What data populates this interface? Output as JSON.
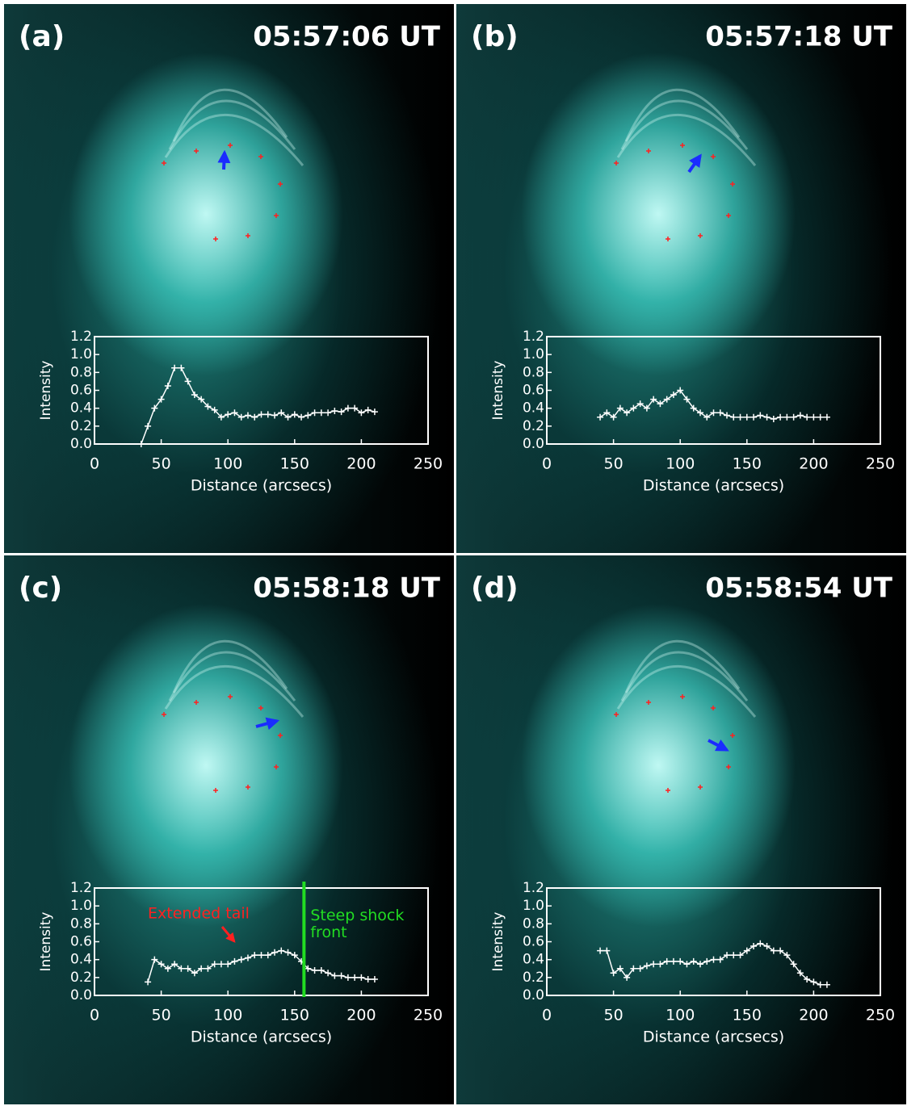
{
  "chart_data": [
    {
      "type": "line",
      "panel": "(a)",
      "time": "05:57:06 UT",
      "xlabel": "Distance (arcsecs)",
      "ylabel": "Intensity",
      "xlim": [
        0,
        250
      ],
      "xticks": [
        0,
        50,
        100,
        150,
        200,
        250
      ],
      "ylim": [
        0,
        1.2
      ],
      "yticks": [
        {
          "value": 0,
          "label": "0.0"
        },
        0.2,
        0.4,
        0.6,
        0.8,
        {
          "value": 1,
          "label": "1.0"
        },
        1.2
      ],
      "color": "#ffffff",
      "x": [
        35,
        40,
        45,
        50,
        55,
        60,
        65,
        70,
        75,
        80,
        85,
        90,
        95,
        100,
        105,
        110,
        115,
        120,
        125,
        130,
        135,
        140,
        145,
        150,
        155,
        160,
        165,
        170,
        175,
        180,
        185,
        190,
        195,
        200,
        205,
        210
      ],
      "values": [
        0.0,
        0.2,
        0.4,
        0.5,
        0.65,
        0.85,
        0.85,
        0.7,
        0.55,
        0.5,
        0.42,
        0.38,
        0.3,
        0.33,
        0.35,
        0.3,
        0.32,
        0.3,
        0.33,
        0.33,
        0.32,
        0.35,
        0.3,
        0.33,
        0.3,
        0.32,
        0.35,
        0.35,
        0.35,
        0.37,
        0.36,
        0.4,
        0.4,
        0.35,
        0.38,
        0.36
      ]
    },
    {
      "type": "line",
      "panel": "(b)",
      "time": "05:57:18 UT",
      "xlabel": "Distance (arcsecs)",
      "ylabel": "Intensity",
      "xlim": [
        0,
        250
      ],
      "xticks": [
        0,
        50,
        100,
        150,
        200,
        250
      ],
      "ylim": [
        0,
        1.2
      ],
      "yticks": [
        {
          "value": 0,
          "label": "0.0"
        },
        0.2,
        0.4,
        0.6,
        0.8,
        {
          "value": 1,
          "label": "1.0"
        },
        1.2
      ],
      "color": "#ffffff",
      "x": [
        40,
        45,
        50,
        55,
        60,
        65,
        70,
        75,
        80,
        85,
        90,
        95,
        100,
        105,
        110,
        115,
        120,
        125,
        130,
        135,
        140,
        145,
        150,
        155,
        160,
        165,
        170,
        175,
        180,
        185,
        190,
        195,
        200,
        205,
        210
      ],
      "values": [
        0.3,
        0.35,
        0.3,
        0.4,
        0.35,
        0.4,
        0.45,
        0.4,
        0.5,
        0.45,
        0.5,
        0.55,
        0.6,
        0.5,
        0.4,
        0.35,
        0.3,
        0.35,
        0.35,
        0.32,
        0.3,
        0.3,
        0.3,
        0.3,
        0.32,
        0.3,
        0.28,
        0.3,
        0.3,
        0.3,
        0.32,
        0.3,
        0.3,
        0.3,
        0.3
      ]
    },
    {
      "type": "line",
      "panel": "(c)",
      "time": "05:58:18 UT",
      "xlabel": "Distance (arcsecs)",
      "ylabel": "Intensity",
      "xlim": [
        0,
        250
      ],
      "xticks": [
        0,
        50,
        100,
        150,
        200,
        250
      ],
      "ylim": [
        0,
        1.2
      ],
      "yticks": [
        {
          "value": 0,
          "label": "0.0"
        },
        0.2,
        0.4,
        0.6,
        0.8,
        {
          "value": 1,
          "label": "1.0"
        },
        1.2
      ],
      "color": "#ffffff",
      "x": [
        40,
        45,
        50,
        55,
        60,
        65,
        70,
        75,
        80,
        85,
        90,
        95,
        100,
        105,
        110,
        115,
        120,
        125,
        130,
        135,
        140,
        145,
        150,
        155,
        160,
        165,
        170,
        175,
        180,
        185,
        190,
        195,
        200,
        205,
        210
      ],
      "values": [
        0.15,
        0.4,
        0.35,
        0.3,
        0.35,
        0.3,
        0.3,
        0.25,
        0.3,
        0.3,
        0.35,
        0.35,
        0.35,
        0.38,
        0.4,
        0.42,
        0.45,
        0.45,
        0.45,
        0.48,
        0.5,
        0.48,
        0.45,
        0.38,
        0.3,
        0.28,
        0.28,
        0.25,
        0.22,
        0.22,
        0.2,
        0.2,
        0.2,
        0.18,
        0.18
      ],
      "annotation_tail": "Extended tail",
      "annotation_front": "Steep shock front",
      "front_x": 157,
      "front_color": "#22dd22"
    },
    {
      "type": "line",
      "panel": "(d)",
      "time": "05:58:54 UT",
      "xlabel": "Distance (arcsecs)",
      "ylabel": "Intensity",
      "xlim": [
        0,
        250
      ],
      "xticks": [
        0,
        50,
        100,
        150,
        200,
        250
      ],
      "ylim": [
        0,
        1.2
      ],
      "yticks": [
        {
          "value": 0,
          "label": "0.0"
        },
        0.2,
        0.4,
        0.6,
        0.8,
        {
          "value": 1,
          "label": "1.0"
        },
        1.2
      ],
      "color": "#ffffff",
      "x": [
        40,
        45,
        50,
        55,
        60,
        65,
        70,
        75,
        80,
        85,
        90,
        95,
        100,
        105,
        110,
        115,
        120,
        125,
        130,
        135,
        140,
        145,
        150,
        155,
        160,
        165,
        170,
        175,
        180,
        185,
        190,
        195,
        200,
        205,
        210
      ],
      "values": [
        0.5,
        0.5,
        0.25,
        0.3,
        0.2,
        0.3,
        0.3,
        0.33,
        0.35,
        0.35,
        0.38,
        0.38,
        0.38,
        0.35,
        0.38,
        0.35,
        0.38,
        0.4,
        0.4,
        0.45,
        0.45,
        0.45,
        0.5,
        0.55,
        0.58,
        0.55,
        0.5,
        0.5,
        0.45,
        0.35,
        0.25,
        0.18,
        0.15,
        0.12,
        0.12
      ]
    }
  ]
}
